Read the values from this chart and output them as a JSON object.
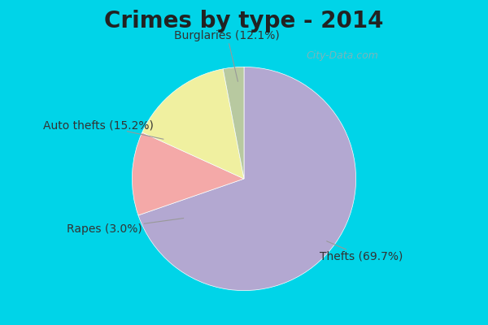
{
  "title": "Crimes by type - 2014",
  "slices": [
    {
      "label": "Thefts (69.7%)",
      "value": 69.7,
      "color": "#b3a8d1"
    },
    {
      "label": "Burglaries (12.1%)",
      "value": 12.1,
      "color": "#f4a9a8"
    },
    {
      "label": "Auto thefts (15.2%)",
      "value": 15.2,
      "color": "#f0f0a0"
    },
    {
      "label": "Rapes (3.0%)",
      "value": 3.0,
      "color": "#b8c9a0"
    }
  ],
  "background_top": "#00d4e8",
  "background_main": "#d6ede0",
  "title_fontsize": 20,
  "label_fontsize": 10,
  "watermark": "City-Data.com",
  "startangle": 90
}
